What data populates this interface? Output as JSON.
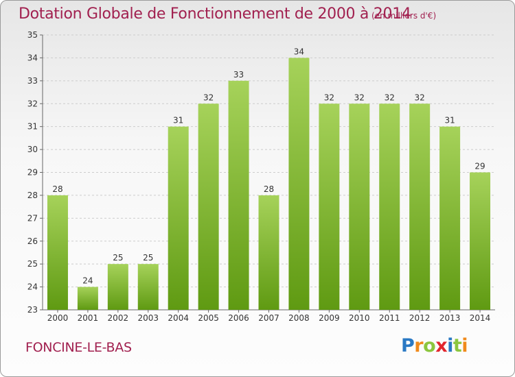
{
  "title": "Dotation Globale de Fonctionnement de 2000 à 2014",
  "unit": "(en milliers d'€)",
  "commune": "FONCINE-LE-BAS",
  "logo": {
    "text": "Proxiti",
    "letters": [
      {
        "ch": "P",
        "color": "#2a79c4"
      },
      {
        "ch": "r",
        "color": "#f08a1c"
      },
      {
        "ch": "o",
        "color": "#8cc63f"
      },
      {
        "ch": "x",
        "color": "#e2262d"
      },
      {
        "ch": "i",
        "color": "#2a79c4"
      },
      {
        "ch": "t",
        "color": "#8cc63f"
      },
      {
        "ch": "i",
        "color": "#f08a1c"
      }
    ]
  },
  "colors": {
    "title": "#a1204f",
    "bar_top": "#a6d25a",
    "bar_bottom": "#5f9a12",
    "grid": "#cccccc"
  },
  "chart_data": {
    "type": "bar",
    "title": "Dotation Globale de Fonctionnement de 2000 à 2014",
    "subtitle": "(en milliers d'€)",
    "categories": [
      "2000",
      "2001",
      "2002",
      "2003",
      "2004",
      "2005",
      "2006",
      "2007",
      "2008",
      "2009",
      "2010",
      "2011",
      "2012",
      "2013",
      "2014"
    ],
    "values": [
      28,
      24,
      25,
      25,
      31,
      32,
      33,
      28,
      34,
      32,
      32,
      32,
      32,
      31,
      29
    ],
    "ylim": [
      23,
      35
    ],
    "yticks": [
      23,
      24,
      25,
      26,
      27,
      28,
      29,
      30,
      31,
      32,
      33,
      34,
      35
    ],
    "grid": true,
    "data_labels": true,
    "xlabel": "",
    "ylabel": ""
  }
}
